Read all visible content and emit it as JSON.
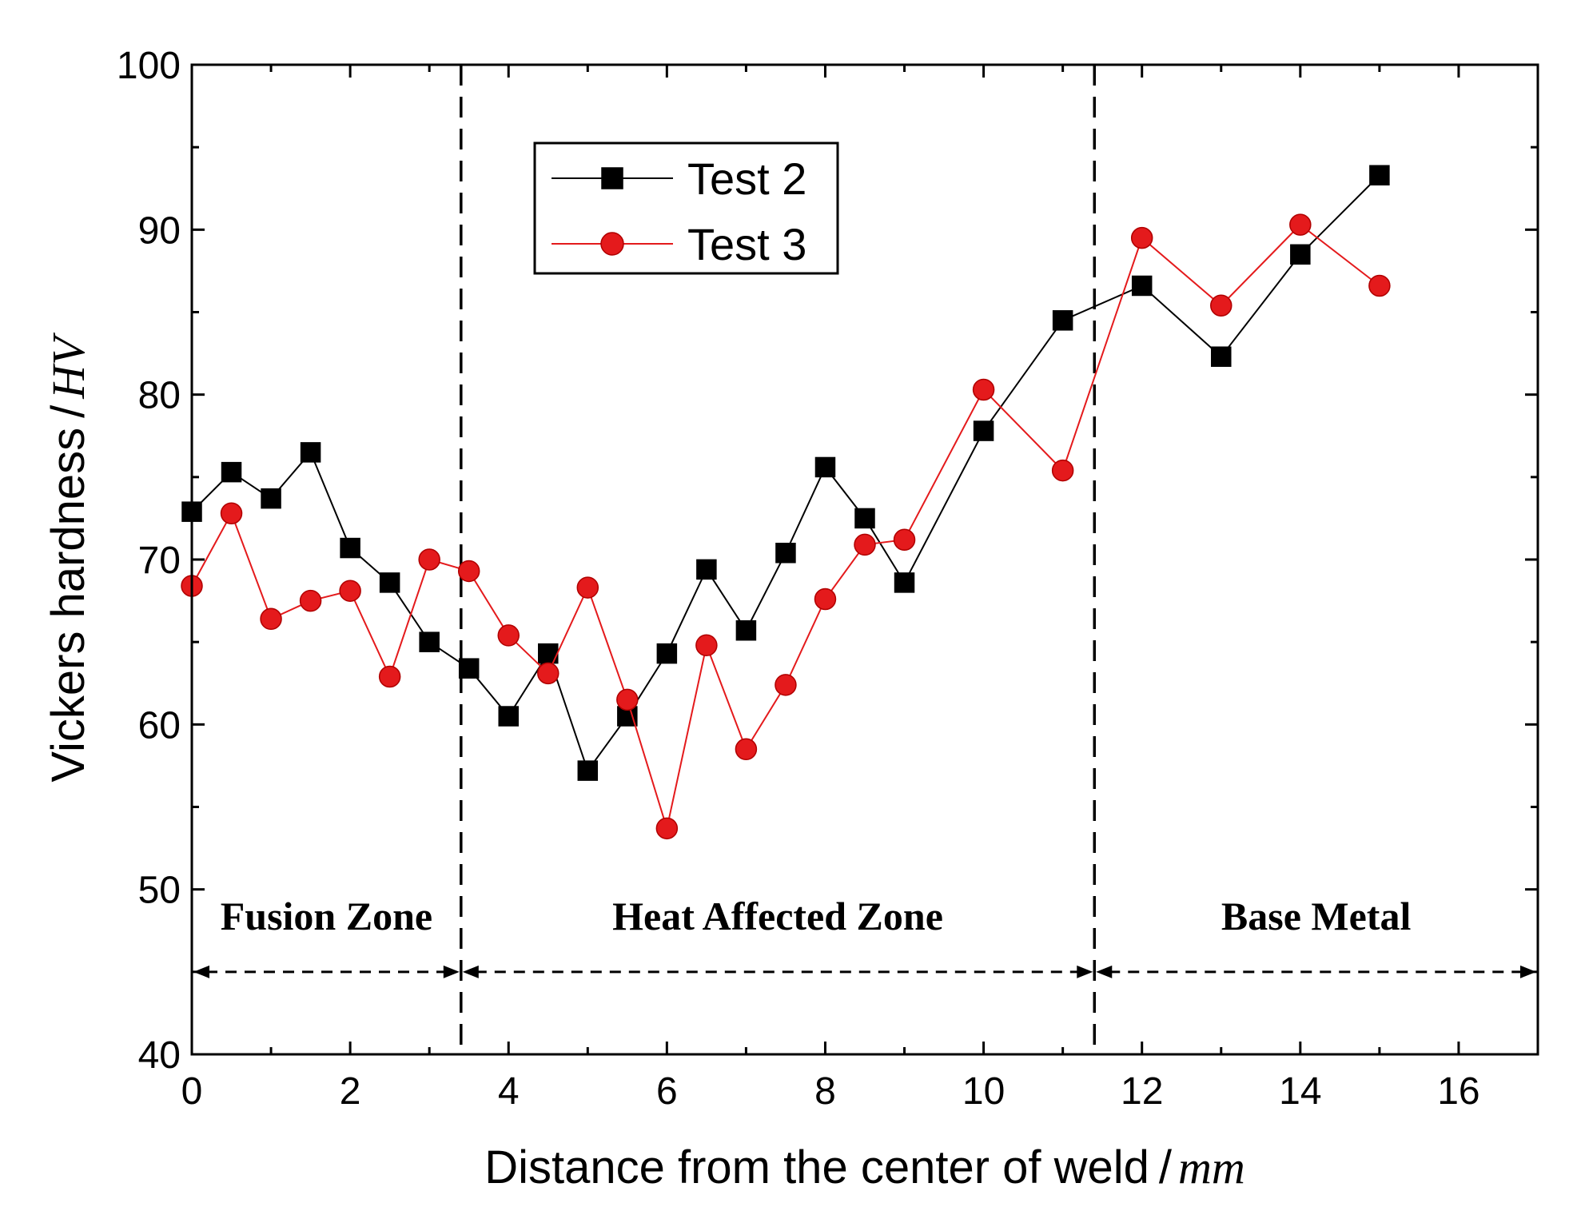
{
  "chart_data": {
    "type": "line",
    "xlabel": "Distance from the center of weld",
    "xlabel_unit": "mm",
    "ylabel": "Vickers hardness",
    "ylabel_unit": "HV",
    "xlim": [
      0,
      17
    ],
    "ylim": [
      40,
      100
    ],
    "xticks": [
      0,
      2,
      4,
      6,
      8,
      10,
      12,
      14,
      16
    ],
    "yticks": [
      40,
      50,
      60,
      70,
      80,
      90,
      100
    ],
    "grid": false,
    "legend_position": "top-center",
    "series": [
      {
        "name": "Test 2",
        "color": "#000000",
        "marker": "square",
        "x": [
          0,
          0.5,
          1,
          1.5,
          2,
          2.5,
          3,
          3.5,
          4,
          4.5,
          5,
          5.5,
          6,
          6.5,
          7,
          7.5,
          8,
          8.5,
          9,
          10,
          11,
          12,
          13,
          14,
          15
        ],
        "y": [
          72.9,
          75.3,
          73.7,
          76.5,
          70.7,
          68.6,
          65.0,
          63.4,
          60.5,
          64.3,
          57.2,
          60.5,
          64.3,
          69.4,
          65.7,
          70.4,
          75.6,
          72.5,
          68.6,
          77.8,
          84.5,
          86.6,
          82.3,
          88.5,
          93.3
        ]
      },
      {
        "name": "Test 3",
        "color": "#e41a1c",
        "marker": "circle",
        "x": [
          0,
          0.5,
          1,
          1.5,
          2,
          2.5,
          3,
          3.5,
          4,
          4.5,
          5,
          5.5,
          6,
          6.5,
          7,
          7.5,
          8,
          8.5,
          9,
          10,
          11,
          12,
          13,
          14,
          15
        ],
        "y": [
          68.4,
          72.8,
          66.4,
          67.5,
          68.1,
          62.9,
          70.0,
          69.3,
          65.4,
          63.1,
          68.3,
          61.5,
          53.7,
          64.8,
          58.5,
          62.4,
          67.6,
          70.9,
          71.2,
          80.3,
          75.4,
          89.5,
          85.4,
          90.3,
          86.6
        ]
      }
    ],
    "zones": [
      {
        "label": "Fusion Zone",
        "from": 0,
        "to": 3.4
      },
      {
        "label": "Heat Affected Zone",
        "from": 3.4,
        "to": 11.4
      },
      {
        "label": "Base Metal",
        "from": 11.4,
        "to": 17
      }
    ],
    "zone_arrow_y": 45
  }
}
